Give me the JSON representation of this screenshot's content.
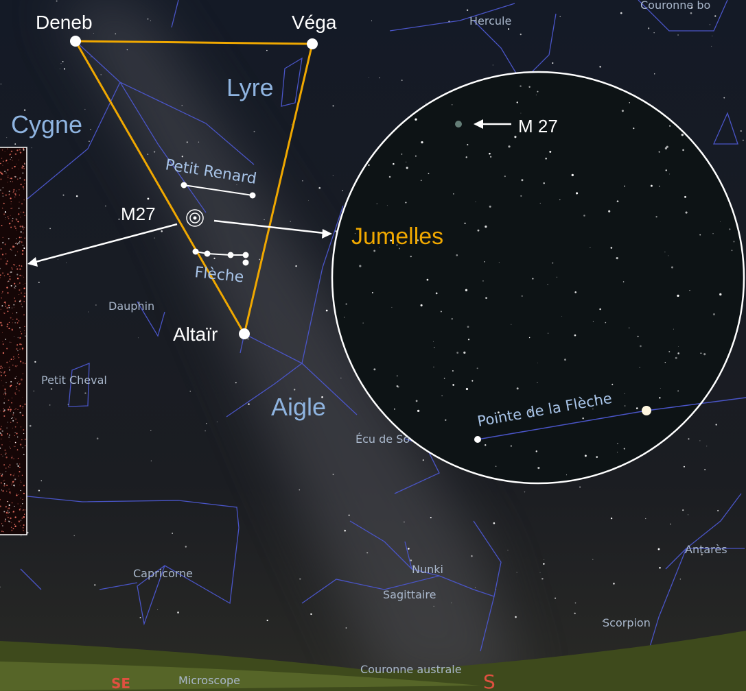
{
  "stars": {
    "deneb": "Deneb",
    "vega": "Véga",
    "altair": "Altaïr",
    "nunki": "Nunki",
    "antares": "Antarès"
  },
  "constellations": {
    "hercule": "Hercule",
    "couronne_boreale": "Couronne bo",
    "lyre": "Lyre",
    "cygne": "Cygne",
    "petit_renard": "Petit Renard",
    "fleche": "Flèche",
    "dauphin": "Dauphin",
    "petit_cheval": "Petit Cheval",
    "aigle": "Aigle",
    "ecu": "Écu de So",
    "capricorne": "Capricorne",
    "sagittaire": "Sagittaire",
    "scorpion": "Scorpion",
    "couronne_australe": "Couronne australe",
    "microscope": "Microscope"
  },
  "annotations": {
    "m27_map": "M27",
    "m27_view": "M 27",
    "binoculars": "Jumelles",
    "pointe": "Pointe de la Flèche"
  },
  "cardinal": {
    "se": "SE",
    "s": "S"
  }
}
